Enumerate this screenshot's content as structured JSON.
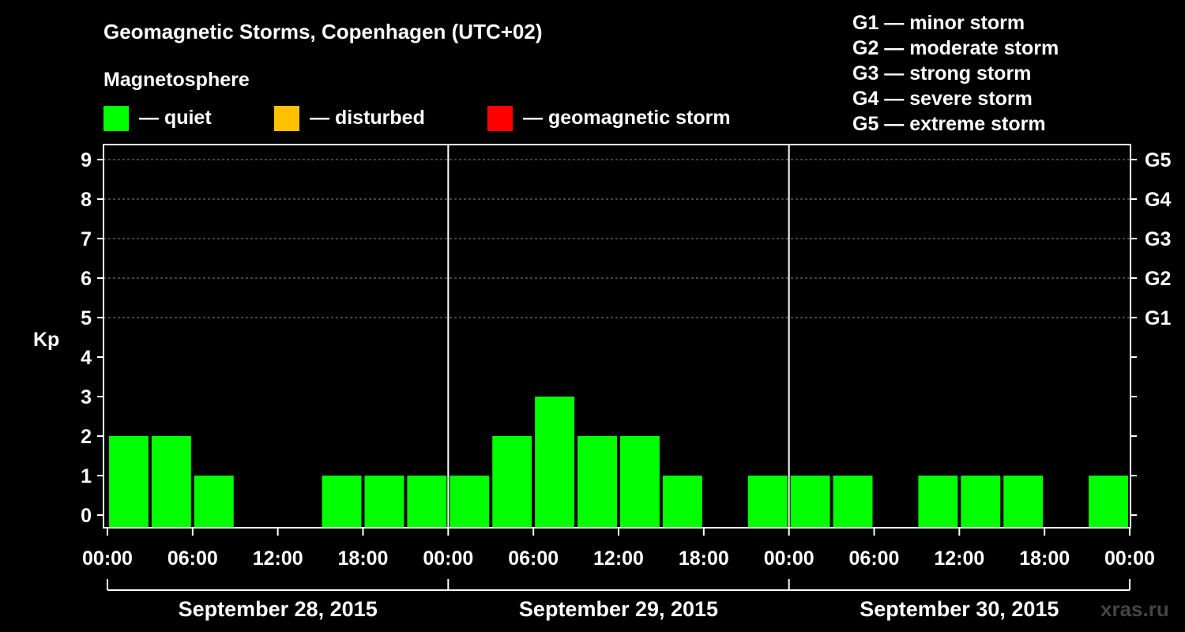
{
  "chart_data": {
    "type": "bar",
    "title": "Geomagnetic Storms, Copenhagen (UTC+02)",
    "subtitle": "Magnetosphere",
    "ylabel": "Kp",
    "ylim": [
      0,
      9
    ],
    "yticks": [
      "0",
      "1",
      "2",
      "3",
      "4",
      "5",
      "6",
      "7",
      "8",
      "9"
    ],
    "storm_scale": [
      {
        "kp": 5,
        "label": "G1"
      },
      {
        "kp": 6,
        "label": "G2"
      },
      {
        "kp": 7,
        "label": "G3"
      },
      {
        "kp": 8,
        "label": "G4"
      },
      {
        "kp": 9,
        "label": "G5"
      }
    ],
    "legend": [
      {
        "label": "— quiet",
        "color": "#00ff00"
      },
      {
        "label": "— disturbed",
        "color": "#ffc000"
      },
      {
        "label": "— geomagnetic storm",
        "color": "#ff0000"
      }
    ],
    "scale_legend": [
      "G1 — minor storm",
      "G2 — moderate storm",
      "G3 — strong storm",
      "G4 — severe storm",
      "G5 — extreme storm"
    ],
    "xticks": [
      "00:00",
      "06:00",
      "12:00",
      "18:00",
      "00:00",
      "06:00",
      "12:00",
      "18:00",
      "00:00",
      "06:00",
      "12:00",
      "18:00",
      "00:00"
    ],
    "days": [
      "September 28, 2015",
      "September 29, 2015",
      "September 30, 2015"
    ],
    "interval_hours": 3,
    "values": [
      2,
      2,
      1,
      0,
      0,
      1,
      1,
      1,
      1,
      2,
      3,
      2,
      2,
      1,
      0,
      1,
      1,
      1,
      0,
      1,
      1,
      1,
      0,
      1
    ],
    "color": "#00ff00",
    "grid": true
  },
  "watermark": "xras.ru"
}
